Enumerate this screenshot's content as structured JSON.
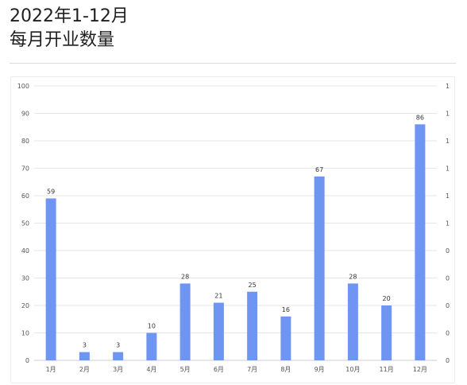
{
  "header": {
    "title_line1": "2022年1-12月",
    "title_line2": "每月开业数量"
  },
  "chart_data": {
    "type": "bar",
    "categories": [
      "1月",
      "2月",
      "3月",
      "4月",
      "5月",
      "6月",
      "7月",
      "8月",
      "9月",
      "10月",
      "11月",
      "12月"
    ],
    "values": [
      59,
      3,
      3,
      10,
      28,
      21,
      25,
      16,
      67,
      28,
      20,
      86
    ],
    "ylim": [
      0,
      100
    ],
    "yticks": [
      0,
      10,
      20,
      30,
      40,
      50,
      60,
      70,
      80,
      90,
      100
    ],
    "y2ticks": [
      "0",
      "0",
      "0",
      "0",
      "0",
      "1",
      "1",
      "1",
      "1",
      "1",
      "1"
    ],
    "grid": true,
    "bar_color": "#6f95f2",
    "data_labels": true
  }
}
